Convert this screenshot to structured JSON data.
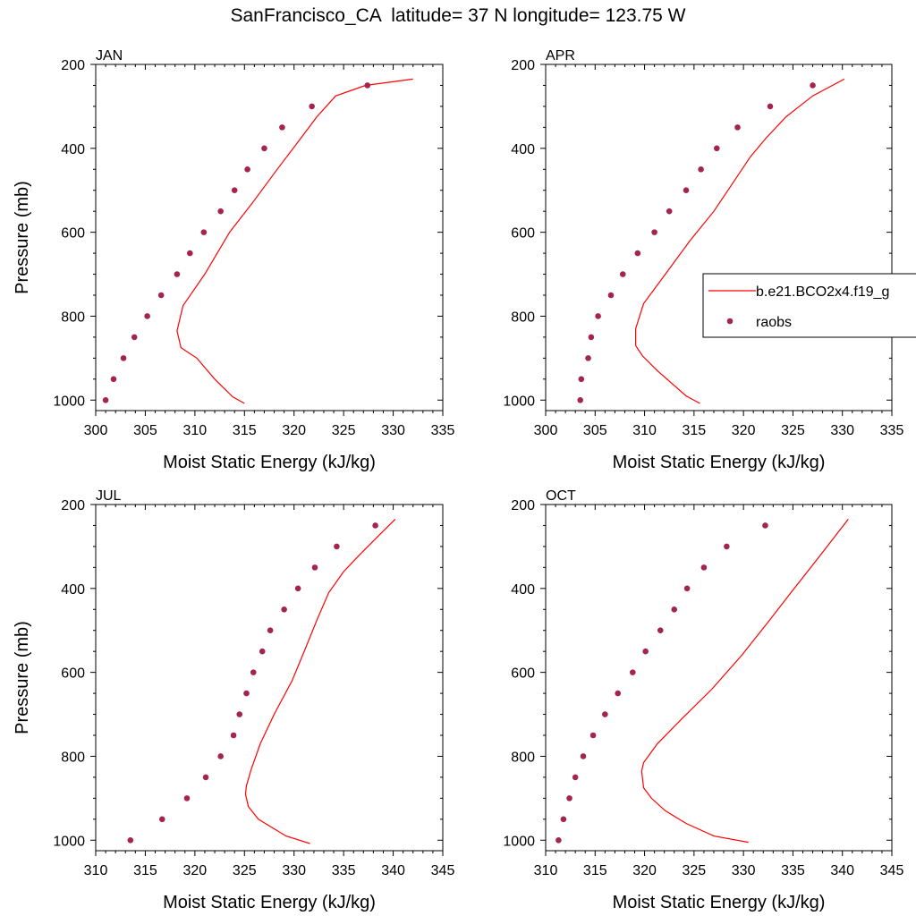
{
  "title": "SanFrancisco_CA  latitude= 37 N longitude= 123.75 W",
  "colors": {
    "model": "#ff0000",
    "obs": "#a3254f"
  },
  "legend": {
    "model_label": "b.e21.BCO2x4.f19_g",
    "obs_label": "raobs"
  },
  "chart_data": [
    {
      "type": "line",
      "panel_title": "JAN",
      "xlabel": "Moist Static Energy (kJ/kg)",
      "ylabel": "Pressure (mb)",
      "xlim": [
        300,
        335
      ],
      "ylim": [
        200,
        1025
      ],
      "xticks": [
        300,
        305,
        310,
        315,
        320,
        325,
        330,
        335
      ],
      "yticks": [
        200,
        400,
        600,
        800,
        1000
      ],
      "y_reversed": true,
      "series": [
        {
          "name": "b.e21.BCO2x4.f19_g",
          "style": "line",
          "x": [
            315.0,
            313.8,
            312.0,
            310.2,
            308.6,
            308.2,
            308.8,
            311.0,
            313.5,
            315.8,
            318.3,
            320.4,
            322.3,
            324.2,
            327.2,
            332.0
          ],
          "y": [
            1008,
            992,
            950,
            900,
            875,
            835,
            775,
            700,
            600,
            530,
            450,
            385,
            325,
            275,
            250,
            235
          ]
        },
        {
          "name": "raobs",
          "style": "markers",
          "x": [
            301.0,
            301.8,
            302.8,
            303.9,
            305.2,
            306.6,
            308.2,
            309.5,
            310.9,
            312.6,
            314.0,
            315.3,
            317.0,
            318.8,
            321.8,
            327.4
          ],
          "y": [
            1000,
            950,
            900,
            850,
            800,
            750,
            700,
            650,
            600,
            550,
            500,
            450,
            400,
            350,
            300,
            250
          ]
        }
      ]
    },
    {
      "type": "line",
      "panel_title": "APR",
      "xlabel": "Moist Static Energy (kJ/kg)",
      "ylabel": "",
      "xlim": [
        300,
        335
      ],
      "ylim": [
        200,
        1025
      ],
      "xticks": [
        300,
        305,
        310,
        315,
        320,
        325,
        330,
        335
      ],
      "yticks": [
        200,
        400,
        600,
        800,
        1000
      ],
      "y_reversed": true,
      "series": [
        {
          "name": "b.e21.BCO2x4.f19_g",
          "style": "line",
          "x": [
            315.6,
            314.2,
            311.3,
            309.8,
            309.1,
            309.1,
            309.9,
            312.1,
            314.6,
            317.0,
            319.0,
            320.7,
            322.3,
            324.3,
            327.0,
            330.2
          ],
          "y": [
            1008,
            990,
            930,
            895,
            870,
            830,
            770,
            700,
            620,
            550,
            480,
            420,
            375,
            325,
            275,
            235
          ]
        },
        {
          "name": "raobs",
          "style": "markers",
          "x": [
            303.5,
            303.6,
            304.3,
            304.6,
            305.3,
            306.6,
            307.8,
            309.3,
            311.0,
            312.5,
            314.2,
            315.7,
            317.3,
            319.4,
            322.7,
            327.0
          ],
          "y": [
            1000,
            950,
            900,
            850,
            800,
            750,
            700,
            650,
            600,
            550,
            500,
            450,
            400,
            350,
            300,
            250
          ]
        }
      ]
    },
    {
      "type": "line",
      "panel_title": "JUL",
      "xlabel": "Moist Static Energy (kJ/kg)",
      "ylabel": "Pressure (mb)",
      "xlim": [
        310,
        345
      ],
      "ylim": [
        200,
        1025
      ],
      "xticks": [
        310,
        315,
        320,
        325,
        330,
        335,
        340,
        345
      ],
      "yticks": [
        200,
        400,
        600,
        800,
        1000
      ],
      "y_reversed": true,
      "series": [
        {
          "name": "b.e21.BCO2x4.f19_g",
          "style": "line",
          "x": [
            331.6,
            329.2,
            326.4,
            325.4,
            325.1,
            325.2,
            325.7,
            326.6,
            328.0,
            329.8,
            331.2,
            332.4,
            333.5,
            335.0,
            336.6,
            338.5,
            340.2
          ],
          "y": [
            1008,
            990,
            950,
            920,
            890,
            870,
            830,
            770,
            700,
            620,
            540,
            470,
            410,
            360,
            320,
            275,
            235
          ]
        },
        {
          "name": "raobs",
          "style": "markers",
          "x": [
            313.5,
            316.7,
            319.2,
            321.1,
            322.6,
            323.9,
            324.5,
            325.2,
            325.9,
            326.8,
            327.6,
            329.0,
            330.4,
            332.1,
            334.3,
            338.2
          ],
          "y": [
            1000,
            950,
            900,
            850,
            800,
            750,
            700,
            650,
            600,
            550,
            500,
            450,
            400,
            350,
            300,
            250
          ]
        }
      ]
    },
    {
      "type": "line",
      "panel_title": "OCT",
      "xlabel": "Moist Static Energy (kJ/kg)",
      "ylabel": "",
      "xlim": [
        310,
        345
      ],
      "ylim": [
        200,
        1025
      ],
      "xticks": [
        310,
        315,
        320,
        325,
        330,
        335,
        340,
        345
      ],
      "yticks": [
        200,
        400,
        600,
        800,
        1000
      ],
      "y_reversed": true,
      "series": [
        {
          "name": "b.e21.BCO2x4.f19_g",
          "style": "line",
          "x": [
            330.5,
            327.0,
            324.2,
            322.1,
            320.7,
            319.9,
            319.7,
            319.9,
            321.3,
            323.8,
            326.8,
            329.8,
            332.5,
            334.8,
            337.8,
            340.6
          ],
          "y": [
            1005,
            990,
            960,
            930,
            900,
            875,
            835,
            815,
            770,
            710,
            640,
            560,
            480,
            410,
            320,
            235
          ]
        },
        {
          "name": "raobs",
          "style": "markers",
          "x": [
            311.3,
            311.8,
            312.4,
            313.0,
            313.8,
            314.8,
            316.0,
            317.3,
            318.8,
            320.1,
            321.6,
            323.0,
            324.3,
            326.0,
            328.3,
            332.2
          ],
          "y": [
            1000,
            950,
            900,
            850,
            800,
            750,
            700,
            650,
            600,
            550,
            500,
            450,
            400,
            350,
            300,
            250
          ]
        }
      ]
    }
  ]
}
